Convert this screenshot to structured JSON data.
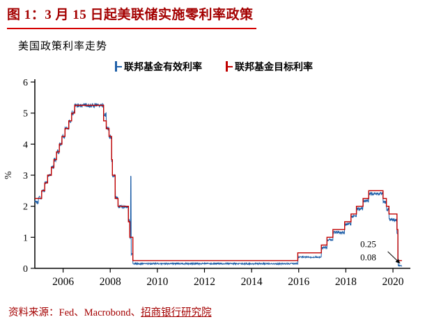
{
  "header": {
    "title": "图 1：3 月 15 日起美联储实施零利率政策"
  },
  "chart_data": {
    "type": "line",
    "title": "美国政策利率走势",
    "xlabel": "",
    "ylabel": "%",
    "xlim": [
      2004.8,
      2020.65
    ],
    "ylim": [
      0,
      6
    ],
    "yticks": [
      0,
      1,
      2,
      3,
      4,
      5,
      6
    ],
    "xticks": [
      2006,
      2008,
      2010,
      2012,
      2014,
      2016,
      2018,
      2020
    ],
    "grid": false,
    "legend_position": "top",
    "series": [
      {
        "name": "联邦基金有效利率",
        "color": "#1f5fa8",
        "step": true,
        "jitter": 0.05,
        "points": [
          [
            2004.8,
            2.13
          ],
          [
            2004.95,
            2.28
          ],
          [
            2005.09,
            2.5
          ],
          [
            2005.22,
            2.78
          ],
          [
            2005.34,
            3.0
          ],
          [
            2005.5,
            3.26
          ],
          [
            2005.61,
            3.5
          ],
          [
            2005.72,
            3.76
          ],
          [
            2005.84,
            4.0
          ],
          [
            2005.95,
            4.24
          ],
          [
            2006.08,
            4.49
          ],
          [
            2006.24,
            4.76
          ],
          [
            2006.36,
            4.99
          ],
          [
            2006.49,
            5.25
          ],
          [
            2007.72,
            4.94
          ],
          [
            2007.83,
            4.53
          ],
          [
            2007.95,
            4.24
          ],
          [
            2008.06,
            3.47
          ],
          [
            2008.09,
            2.98
          ],
          [
            2008.21,
            2.28
          ],
          [
            2008.33,
            1.98
          ],
          [
            2008.76,
            1.52
          ],
          [
            2008.82,
            1.0
          ],
          [
            2008.86,
            3.0
          ],
          [
            2008.89,
            0.45
          ],
          [
            2008.96,
            0.15
          ],
          [
            2015.96,
            0.36
          ],
          [
            2016.96,
            0.66
          ],
          [
            2017.2,
            0.91
          ],
          [
            2017.45,
            1.16
          ],
          [
            2017.95,
            1.42
          ],
          [
            2018.22,
            1.68
          ],
          [
            2018.45,
            1.91
          ],
          [
            2018.73,
            2.18
          ],
          [
            2018.97,
            2.4
          ],
          [
            2019.58,
            2.13
          ],
          [
            2019.72,
            1.9
          ],
          [
            2019.83,
            1.56
          ],
          [
            2020.17,
            1.09
          ],
          [
            2020.21,
            0.08
          ],
          [
            2020.38,
            0.08
          ]
        ]
      },
      {
        "name": "联邦基金目标利率",
        "color": "#c00000",
        "step": true,
        "jitter": 0,
        "points": [
          [
            2004.8,
            2.25
          ],
          [
            2005.09,
            2.5
          ],
          [
            2005.22,
            2.75
          ],
          [
            2005.34,
            3.0
          ],
          [
            2005.5,
            3.25
          ],
          [
            2005.61,
            3.5
          ],
          [
            2005.72,
            3.75
          ],
          [
            2005.84,
            4.0
          ],
          [
            2005.95,
            4.25
          ],
          [
            2006.08,
            4.5
          ],
          [
            2006.24,
            4.75
          ],
          [
            2006.36,
            5.0
          ],
          [
            2006.49,
            5.25
          ],
          [
            2007.72,
            4.75
          ],
          [
            2007.83,
            4.5
          ],
          [
            2007.95,
            4.25
          ],
          [
            2008.06,
            3.5
          ],
          [
            2008.09,
            3.0
          ],
          [
            2008.21,
            2.25
          ],
          [
            2008.33,
            2.0
          ],
          [
            2008.77,
            1.5
          ],
          [
            2008.83,
            1.0
          ],
          [
            2008.96,
            0.25
          ],
          [
            2015.96,
            0.5
          ],
          [
            2016.96,
            0.75
          ],
          [
            2017.2,
            1.0
          ],
          [
            2017.45,
            1.25
          ],
          [
            2017.95,
            1.5
          ],
          [
            2018.22,
            1.75
          ],
          [
            2018.45,
            2.0
          ],
          [
            2018.73,
            2.25
          ],
          [
            2018.97,
            2.5
          ],
          [
            2019.58,
            2.25
          ],
          [
            2019.72,
            2.0
          ],
          [
            2019.83,
            1.75
          ],
          [
            2020.17,
            1.25
          ],
          [
            2020.21,
            0.25
          ],
          [
            2020.38,
            0.25
          ]
        ]
      }
    ],
    "annotations": [
      {
        "text": "0.25",
        "x": 2018.95,
        "y": 0.68
      },
      {
        "text": "0.08",
        "x": 2018.95,
        "y": 0.26
      }
    ],
    "arrow": {
      "from": [
        2019.78,
        0.54
      ],
      "to": [
        2020.3,
        0.16
      ]
    }
  },
  "footer": {
    "source_prefix": "资料来源：Fed、Macrobond、",
    "source_link": "招商银行研究院"
  },
  "colors": {
    "accent": "#a40000",
    "rule": "#d40000",
    "axis": "#000000",
    "effective_line": "#1f5fa8",
    "target_line": "#c00000"
  }
}
